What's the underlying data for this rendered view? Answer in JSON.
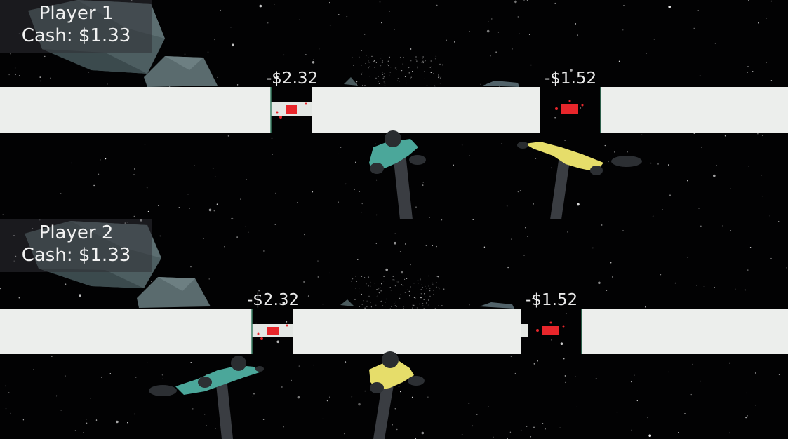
{
  "viewports": [
    {
      "player_label": "Player 1",
      "cash_text": "Cash: $1.33",
      "gap_prices": [
        "-$2.32",
        "-$1.52"
      ],
      "characters": [
        {
          "color": "#4ba79a",
          "pose": "facing-camera"
        },
        {
          "color": "#e6dd6a",
          "pose": "flying"
        }
      ]
    },
    {
      "player_label": "Player 2",
      "cash_text": "Cash: $1.33",
      "gap_prices": [
        "-$2.32",
        "-$1.52"
      ],
      "characters": [
        {
          "color": "#4ba79a",
          "pose": "flying"
        },
        {
          "color": "#e6dd6a",
          "pose": "facing-camera"
        }
      ]
    }
  ],
  "colors": {
    "space": "#020203",
    "platform": "#ecefec",
    "asteroid": "#4f5f62",
    "blood": "#e8262b",
    "pole": "#3a3d42"
  }
}
